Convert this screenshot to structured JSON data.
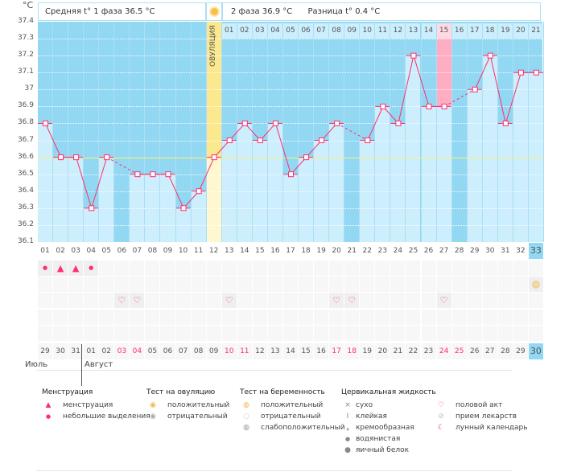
{
  "unit_label": "°C",
  "header": {
    "phase1": "Средняя t° 1 фаза 36.5 °C",
    "phase2": "2 фаза 36.9 °C",
    "difference": "Разница t° 0.4 °C",
    "ovulation_label": "ОВУЛЯЦИЯ",
    "sun_icon": "ovulation-sun-icon"
  },
  "colors": {
    "background": "#93d8f3",
    "bar": "#cdeefc",
    "line": "#ff2d6e",
    "coverline": "#fff176",
    "ovulation": "#fbe88f",
    "highlight": "#ffadc2",
    "weekend": "#ff2d6e"
  },
  "chart_data": {
    "type": "line",
    "ylim": [
      36.1,
      37.4
    ],
    "yticks": [
      "37.4",
      "37.3",
      "37.2",
      "37.1",
      "37",
      "36.9",
      "36.8",
      "36.7",
      "36.6",
      "36.5",
      "36.4",
      "36.3",
      "36.2",
      "36.1"
    ],
    "coverline": 36.6,
    "ovulation_day": 12,
    "highlight_day": 27,
    "cycle_days": [
      "01",
      "02",
      "03",
      "04",
      "05",
      "06",
      "07",
      "08",
      "09",
      "10",
      "11",
      "12",
      "13",
      "14",
      "15",
      "16",
      "17",
      "18",
      "19",
      "20",
      "21",
      "22",
      "23",
      "24",
      "25",
      "26",
      "27",
      "28",
      "29",
      "30",
      "31",
      "32",
      "33"
    ],
    "temperatures": [
      36.8,
      36.6,
      36.6,
      36.3,
      36.6,
      null,
      36.5,
      36.5,
      36.5,
      36.3,
      36.4,
      36.6,
      36.7,
      36.8,
      36.7,
      36.8,
      36.5,
      36.6,
      36.7,
      36.8,
      null,
      36.7,
      36.9,
      36.8,
      37.2,
      36.9,
      36.9,
      null,
      37.0,
      37.2,
      36.8,
      37.1,
      37.1
    ],
    "phase2_days": [
      "01",
      "02",
      "03",
      "04",
      "05",
      "06",
      "07",
      "08",
      "09",
      "10",
      "11",
      "12",
      "13",
      "14",
      "15",
      "16",
      "17",
      "18",
      "19",
      "20",
      "21"
    ],
    "current_day": "33"
  },
  "calendar": {
    "dates": [
      "29",
      "30",
      "31",
      "01",
      "02",
      "03",
      "04",
      "05",
      "06",
      "07",
      "08",
      "09",
      "10",
      "11",
      "12",
      "13",
      "14",
      "15",
      "16",
      "17",
      "18",
      "19",
      "20",
      "21",
      "22",
      "23",
      "24",
      "25",
      "26",
      "27",
      "28",
      "29",
      "30"
    ],
    "weekend_indices": [
      5,
      6,
      12,
      13,
      19,
      20,
      26,
      27
    ],
    "months": [
      "Июль",
      "Август"
    ]
  },
  "marks": {
    "menstruation": {
      "1": "small",
      "2": "big",
      "3": "big",
      "4": "small"
    },
    "pregnancy_test": {
      "33": "positive"
    },
    "intercourse": [
      6,
      7,
      13,
      20,
      21,
      27
    ]
  },
  "legend": {
    "menstruation": {
      "title": "Менструация",
      "items": [
        "менструация",
        "небольшие выделения"
      ]
    },
    "ovulation_test": {
      "title": "Тест на овуляцию",
      "items": [
        "положительный",
        "отрицательный"
      ]
    },
    "pregnancy_test": {
      "title": "Тест на беременность",
      "items": [
        "положительный",
        "отрицательный",
        "слабоположительный"
      ]
    },
    "cervical": {
      "title": "Цервикальная жидкость",
      "items": [
        "сухо",
        "клейкая",
        "кремообразная",
        "водянистая",
        "яичный белок"
      ]
    },
    "other": {
      "items": [
        "половой акт",
        "прием лекарств",
        "лунный календарь"
      ]
    }
  }
}
